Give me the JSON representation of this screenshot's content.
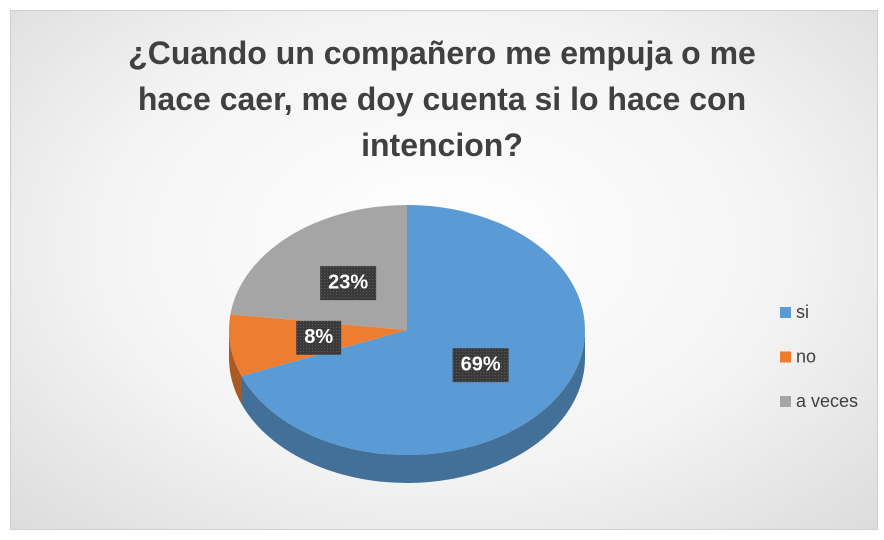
{
  "chart_data": {
    "type": "pie",
    "title": "¿Cuando un compañero me empuja o me hace caer, me doy cuenta si lo hace con intencion?",
    "categories": [
      "si",
      "no",
      "a veces"
    ],
    "values": [
      69,
      8,
      23
    ],
    "value_labels": [
      "69%",
      "8%",
      "23%"
    ],
    "colors": [
      "#5b9bd5",
      "#ed7d31",
      "#a5a5a5"
    ],
    "legend": "right"
  }
}
